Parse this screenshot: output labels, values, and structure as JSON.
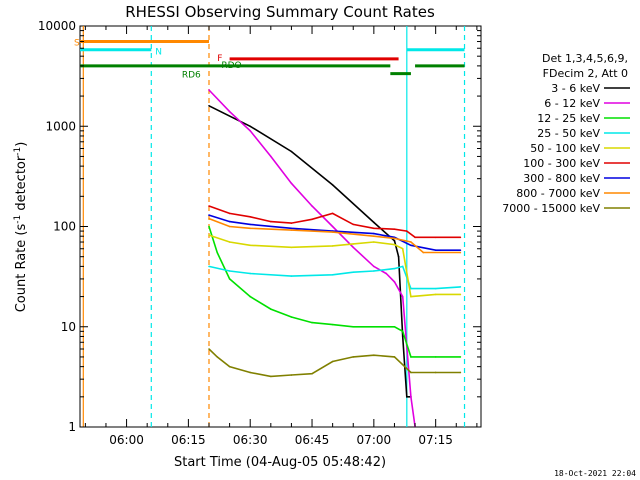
{
  "chart_data": {
    "type": "line",
    "title": "RHESSI Observing Summary Count Rates",
    "xlabel": "Start Time (04-Aug-05 05:48:42)",
    "ylabel_main": "Count Rate (s",
    "ylabel_sup1": "-1",
    "ylabel_mid": " detector",
    "ylabel_sup2": "-1",
    "ylabel_end": ")",
    "y_scale": "log",
    "ylim": [
      1,
      10000
    ],
    "xlim": [
      "05:48:42",
      "07:26:00"
    ],
    "y_ticks": [
      "1",
      "10",
      "100",
      "1000",
      "10000"
    ],
    "x_ticks": [
      "06:00",
      "06:15",
      "06:30",
      "06:45",
      "07:00",
      "07:15"
    ],
    "legend_header": [
      "Det 1,3,4,5,6,9,",
      "FDecim 2, Att 0"
    ],
    "legend_position": "right",
    "footer_date": "18-Oct-2021 22:04",
    "series": [
      {
        "name": "3 - 6 keV",
        "color": "#000000",
        "points": [
          [
            "06:20",
            1600
          ],
          [
            "06:30",
            1000
          ],
          [
            "06:40",
            560
          ],
          [
            "06:50",
            260
          ],
          [
            "07:00",
            110
          ],
          [
            "07:05",
            72
          ],
          [
            "07:06",
            50
          ],
          [
            "07:07",
            8
          ],
          [
            "07:08",
            2
          ],
          [
            "07:09",
            2
          ]
        ]
      },
      {
        "name": "6 - 12 keV",
        "color": "#e000e0",
        "points": [
          [
            "06:20",
            2300
          ],
          [
            "06:25",
            1400
          ],
          [
            "06:30",
            900
          ],
          [
            "06:35",
            500
          ],
          [
            "06:40",
            270
          ],
          [
            "06:45",
            160
          ],
          [
            "06:50",
            100
          ],
          [
            "06:55",
            62
          ],
          [
            "07:00",
            40
          ],
          [
            "07:03",
            34
          ],
          [
            "07:05",
            28
          ],
          [
            "07:07",
            20
          ],
          [
            "07:09",
            2
          ],
          [
            "07:10",
            1
          ]
        ]
      },
      {
        "name": "12 - 25 keV",
        "color": "#00e000",
        "points": [
          [
            "06:20",
            100
          ],
          [
            "06:22",
            55
          ],
          [
            "06:25",
            30
          ],
          [
            "06:30",
            20
          ],
          [
            "06:35",
            15
          ],
          [
            "06:40",
            12.5
          ],
          [
            "06:45",
            11
          ],
          [
            "06:50",
            10.5
          ],
          [
            "06:55",
            10
          ],
          [
            "07:00",
            10
          ],
          [
            "07:05",
            10
          ],
          [
            "07:07",
            9
          ],
          [
            "07:09",
            5
          ],
          [
            "07:15",
            5
          ],
          [
            "07:21",
            5
          ]
        ]
      },
      {
        "name": "25 - 50 keV",
        "color": "#00e8e8",
        "points": [
          [
            "06:20",
            40
          ],
          [
            "06:25",
            36
          ],
          [
            "06:30",
            34
          ],
          [
            "06:40",
            32
          ],
          [
            "06:50",
            33
          ],
          [
            "06:55",
            35
          ],
          [
            "07:00",
            36
          ],
          [
            "07:05",
            38
          ],
          [
            "07:07",
            40
          ],
          [
            "07:09",
            24
          ],
          [
            "07:15",
            24
          ],
          [
            "07:21",
            25
          ]
        ]
      },
      {
        "name": "50 - 100 keV",
        "color": "#d8d800",
        "points": [
          [
            "06:20",
            82
          ],
          [
            "06:25",
            70
          ],
          [
            "06:30",
            65
          ],
          [
            "06:40",
            62
          ],
          [
            "06:50",
            64
          ],
          [
            "06:55",
            67
          ],
          [
            "07:00",
            70
          ],
          [
            "07:05",
            66
          ],
          [
            "07:07",
            60
          ],
          [
            "07:09",
            20
          ],
          [
            "07:15",
            21
          ],
          [
            "07:21",
            21
          ]
        ]
      },
      {
        "name": "100 - 300 keV",
        "color": "#e00000",
        "points": [
          [
            "06:20",
            160
          ],
          [
            "06:25",
            135
          ],
          [
            "06:30",
            125
          ],
          [
            "06:35",
            112
          ],
          [
            "06:40",
            108
          ],
          [
            "06:45",
            118
          ],
          [
            "06:50",
            135
          ],
          [
            "06:55",
            105
          ],
          [
            "07:00",
            96
          ],
          [
            "07:05",
            94
          ],
          [
            "07:08",
            90
          ],
          [
            "07:10",
            78
          ],
          [
            "07:15",
            78
          ],
          [
            "07:21",
            78
          ]
        ]
      },
      {
        "name": "300 - 800 keV",
        "color": "#0000e0",
        "points": [
          [
            "06:20",
            130
          ],
          [
            "06:25",
            112
          ],
          [
            "06:30",
            105
          ],
          [
            "06:40",
            96
          ],
          [
            "06:50",
            90
          ],
          [
            "07:00",
            85
          ],
          [
            "07:05",
            78
          ],
          [
            "07:09",
            65
          ],
          [
            "07:15",
            58
          ],
          [
            "07:21",
            58
          ]
        ]
      },
      {
        "name": "800 - 7000 keV",
        "color": "#ff8800",
        "points": [
          [
            "06:20",
            120
          ],
          [
            "06:25",
            100
          ],
          [
            "06:30",
            96
          ],
          [
            "06:40",
            92
          ],
          [
            "06:50",
            88
          ],
          [
            "07:00",
            80
          ],
          [
            "07:05",
            76
          ],
          [
            "07:09",
            70
          ],
          [
            "07:12",
            55
          ],
          [
            "07:21",
            55
          ]
        ]
      },
      {
        "name": "7000 - 15000 keV",
        "color": "#808000",
        "points": [
          [
            "06:20",
            6
          ],
          [
            "06:22",
            5
          ],
          [
            "06:25",
            4
          ],
          [
            "06:30",
            3.5
          ],
          [
            "06:35",
            3.2
          ],
          [
            "06:40",
            3.3
          ],
          [
            "06:45",
            3.4
          ],
          [
            "06:50",
            4.5
          ],
          [
            "06:55",
            5
          ],
          [
            "07:00",
            5.2
          ],
          [
            "07:05",
            5
          ],
          [
            "07:09",
            3.5
          ],
          [
            "07:15",
            3.5
          ],
          [
            "07:21",
            3.5
          ]
        ]
      }
    ],
    "flags": [
      {
        "label": "S",
        "color": "#ff8800",
        "segments": [
          [
            "05:48:42",
            "06:20"
          ]
        ],
        "level": 7000
      },
      {
        "label": "N",
        "color": "#00e8e8",
        "segments": [
          [
            "05:48:42",
            "06:06"
          ],
          [
            "07:08",
            "07:22"
          ]
        ],
        "level": 5800
      },
      {
        "label": "F",
        "color": "#e00000",
        "segments": [
          [
            "06:25",
            "07:06"
          ]
        ],
        "level": 4700
      },
      {
        "label": "RDO",
        "color": "#008000",
        "segments": [
          [
            "05:48:42",
            "07:04"
          ],
          [
            "07:10",
            "07:22"
          ]
        ],
        "level": 4000
      },
      {
        "label": "RD6",
        "color": "#008000",
        "segments": [
          [
            "07:04",
            "07:09"
          ]
        ],
        "level": 3350
      }
    ],
    "vlines": [
      {
        "time": "05:49:30",
        "color": "#ff8800",
        "style": "solid"
      },
      {
        "time": "06:06",
        "color": "#00e8e8",
        "style": "dashed"
      },
      {
        "time": "06:20",
        "color": "#ff8800",
        "style": "dashed"
      },
      {
        "time": "07:08",
        "color": "#00e8e8",
        "style": "solid"
      },
      {
        "time": "07:22",
        "color": "#00e8e8",
        "style": "dashed"
      }
    ]
  }
}
